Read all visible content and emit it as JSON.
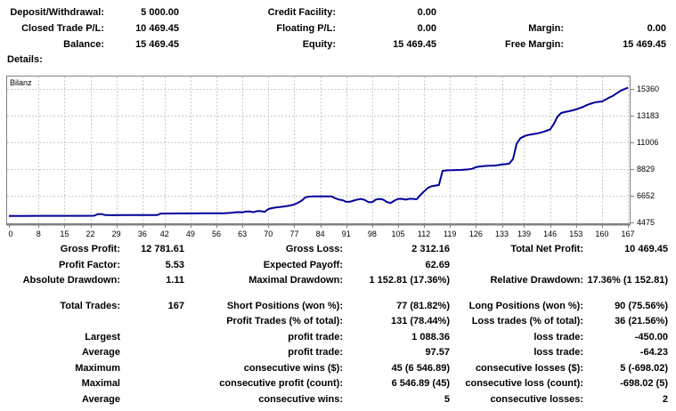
{
  "summary": {
    "rows": [
      {
        "c1l": "Deposit/Withdrawal:",
        "c1v": "5 000.00",
        "c2l": "Credit Facility:",
        "c2v": "0.00",
        "c3l": "",
        "c3v": ""
      },
      {
        "c1l": "Closed Trade P/L:",
        "c1v": "10 469.45",
        "c2l": "Floating P/L:",
        "c2v": "0.00",
        "c3l": "Margin:",
        "c3v": "0.00"
      },
      {
        "c1l": "Balance:",
        "c1v": "15 469.45",
        "c2l": "Equity:",
        "c2v": "15 469.45",
        "c3l": "Free Margin:",
        "c3v": "15 469.45"
      }
    ]
  },
  "details_label": "Details:",
  "chart_data": {
    "type": "line",
    "legend": "Bilanz",
    "xlabel": "",
    "ylabel": "",
    "xlim": [
      0,
      167
    ],
    "ylim": [
      4475,
      16600
    ],
    "x_ticks": [
      0,
      8,
      15,
      22,
      29,
      36,
      42,
      49,
      56,
      63,
      70,
      77,
      84,
      91,
      98,
      105,
      112,
      119,
      126,
      133,
      139,
      146,
      153,
      160,
      167
    ],
    "y_ticks": [
      4475,
      6652,
      8829,
      11006,
      13183,
      15360
    ],
    "grid": true,
    "grid_color": "#c9c9c9",
    "axis_color": "#808080",
    "series": [
      {
        "name": "Bilanz",
        "color": "#000099",
        "points": [
          [
            0,
            5000
          ],
          [
            4,
            5005
          ],
          [
            8,
            5010
          ],
          [
            12,
            5010
          ],
          [
            16,
            5015
          ],
          [
            20,
            5015
          ],
          [
            23,
            5020
          ],
          [
            24,
            5150
          ],
          [
            25,
            5160
          ],
          [
            26,
            5070
          ],
          [
            28,
            5065
          ],
          [
            31,
            5070
          ],
          [
            34,
            5075
          ],
          [
            37,
            5075
          ],
          [
            40,
            5080
          ],
          [
            41,
            5190
          ],
          [
            43,
            5200
          ],
          [
            46,
            5205
          ],
          [
            49,
            5210
          ],
          [
            52,
            5215
          ],
          [
            55,
            5215
          ],
          [
            58,
            5220
          ],
          [
            60,
            5260
          ],
          [
            61,
            5300
          ],
          [
            62,
            5310
          ],
          [
            63,
            5300
          ],
          [
            64,
            5360
          ],
          [
            65,
            5370
          ],
          [
            66,
            5310
          ],
          [
            67,
            5400
          ],
          [
            68,
            5390
          ],
          [
            69,
            5340
          ],
          [
            70,
            5560
          ],
          [
            71,
            5640
          ],
          [
            72,
            5690
          ],
          [
            73,
            5730
          ],
          [
            74,
            5770
          ],
          [
            75,
            5810
          ],
          [
            76,
            5860
          ],
          [
            77,
            5940
          ],
          [
            78,
            6080
          ],
          [
            79,
            6250
          ],
          [
            80,
            6520
          ],
          [
            81,
            6580
          ],
          [
            82,
            6600
          ],
          [
            84,
            6600
          ],
          [
            86,
            6600
          ],
          [
            87,
            6600
          ],
          [
            88,
            6450
          ],
          [
            89,
            6340
          ],
          [
            90,
            6290
          ],
          [
            91,
            6150
          ],
          [
            92,
            6160
          ],
          [
            93,
            6250
          ],
          [
            94,
            6340
          ],
          [
            95,
            6390
          ],
          [
            96,
            6310
          ],
          [
            97,
            6120
          ],
          [
            98,
            6120
          ],
          [
            99,
            6340
          ],
          [
            100,
            6390
          ],
          [
            101,
            6330
          ],
          [
            102,
            6130
          ],
          [
            103,
            6060
          ],
          [
            104,
            6250
          ],
          [
            105,
            6390
          ],
          [
            106,
            6400
          ],
          [
            107,
            6330
          ],
          [
            108,
            6400
          ],
          [
            109,
            6400
          ],
          [
            110,
            6360
          ],
          [
            111,
            6700
          ],
          [
            112,
            7000
          ],
          [
            113,
            7280
          ],
          [
            114,
            7420
          ],
          [
            115,
            7480
          ],
          [
            116,
            7520
          ],
          [
            117,
            8680
          ],
          [
            118,
            8720
          ],
          [
            120,
            8740
          ],
          [
            122,
            8760
          ],
          [
            124,
            8800
          ],
          [
            125,
            8850
          ],
          [
            126,
            8980
          ],
          [
            127,
            9030
          ],
          [
            128,
            9060
          ],
          [
            129,
            9090
          ],
          [
            130,
            9100
          ],
          [
            131,
            9110
          ],
          [
            132,
            9150
          ],
          [
            133,
            9200
          ],
          [
            134,
            9230
          ],
          [
            135,
            9270
          ],
          [
            136,
            9650
          ],
          [
            137,
            10900
          ],
          [
            138,
            11350
          ],
          [
            139,
            11500
          ],
          [
            140,
            11600
          ],
          [
            141,
            11650
          ],
          [
            142,
            11700
          ],
          [
            143,
            11760
          ],
          [
            144,
            11850
          ],
          [
            145,
            11950
          ],
          [
            146,
            12050
          ],
          [
            147,
            12500
          ],
          [
            148,
            13100
          ],
          [
            149,
            13400
          ],
          [
            150,
            13480
          ],
          [
            151,
            13540
          ],
          [
            152,
            13610
          ],
          [
            153,
            13690
          ],
          [
            154,
            13800
          ],
          [
            155,
            13910
          ],
          [
            156,
            14060
          ],
          [
            157,
            14160
          ],
          [
            158,
            14260
          ],
          [
            159,
            14310
          ],
          [
            160,
            14340
          ],
          [
            161,
            14500
          ],
          [
            162,
            14660
          ],
          [
            163,
            14810
          ],
          [
            164,
            15010
          ],
          [
            165,
            15210
          ],
          [
            166,
            15340
          ],
          [
            167,
            15469
          ]
        ]
      }
    ]
  },
  "stats": {
    "rows": [
      {
        "c1l": "Gross Profit:",
        "c1v": "12 781.61",
        "c2l": "Gross Loss:",
        "c2v": "2 312.16",
        "c3l": "Total Net Profit:",
        "c3v": "10 469.45"
      },
      {
        "c1l": "Profit Factor:",
        "c1v": "5.53",
        "c2l": "Expected Payoff:",
        "c2v": "62.69",
        "c3l": "",
        "c3v": ""
      },
      {
        "c1l": "Absolute Drawdown:",
        "c1v": "1.11",
        "c2l": "Maximal Drawdown:",
        "c2v": "1 152.81 (17.36%)",
        "c3l": "Relative Drawdown:",
        "c3v": "17.36% (1 152.81)"
      },
      {
        "c1l": "Total Trades:",
        "c1v": "167",
        "c2l": "Short Positions (won %):",
        "c2v": "77 (81.82%)",
        "c3l": "Long Positions (won %):",
        "c3v": "90 (75.56%)"
      },
      {
        "c1l": "",
        "c1v": "",
        "c2l": "Profit Trades (% of total):",
        "c2v": "131 (78.44%)",
        "c3l": "Loss trades (% of total):",
        "c3v": "36 (21.56%)"
      },
      {
        "c1l": "Largest",
        "c1v": "",
        "c2l": "profit trade:",
        "c2v": "1 088.36",
        "c3l": "loss trade:",
        "c3v": "-450.00"
      },
      {
        "c1l": "Average",
        "c1v": "",
        "c2l": "profit trade:",
        "c2v": "97.57",
        "c3l": "loss trade:",
        "c3v": "-64.23"
      },
      {
        "c1l": "Maximum",
        "c1v": "",
        "c2l": "consecutive wins ($):",
        "c2v": "45 (6 546.89)",
        "c3l": "consecutive losses ($):",
        "c3v": "5 (-698.02)"
      },
      {
        "c1l": "Maximal",
        "c1v": "",
        "c2l": "consecutive profit (count):",
        "c2v": "6 546.89 (45)",
        "c3l": "consecutive loss (count):",
        "c3v": "-698.02 (5)"
      },
      {
        "c1l": "Average",
        "c1v": "",
        "c2l": "consecutive wins:",
        "c2v": "5",
        "c3l": "consecutive losses:",
        "c3v": "2"
      }
    ]
  }
}
